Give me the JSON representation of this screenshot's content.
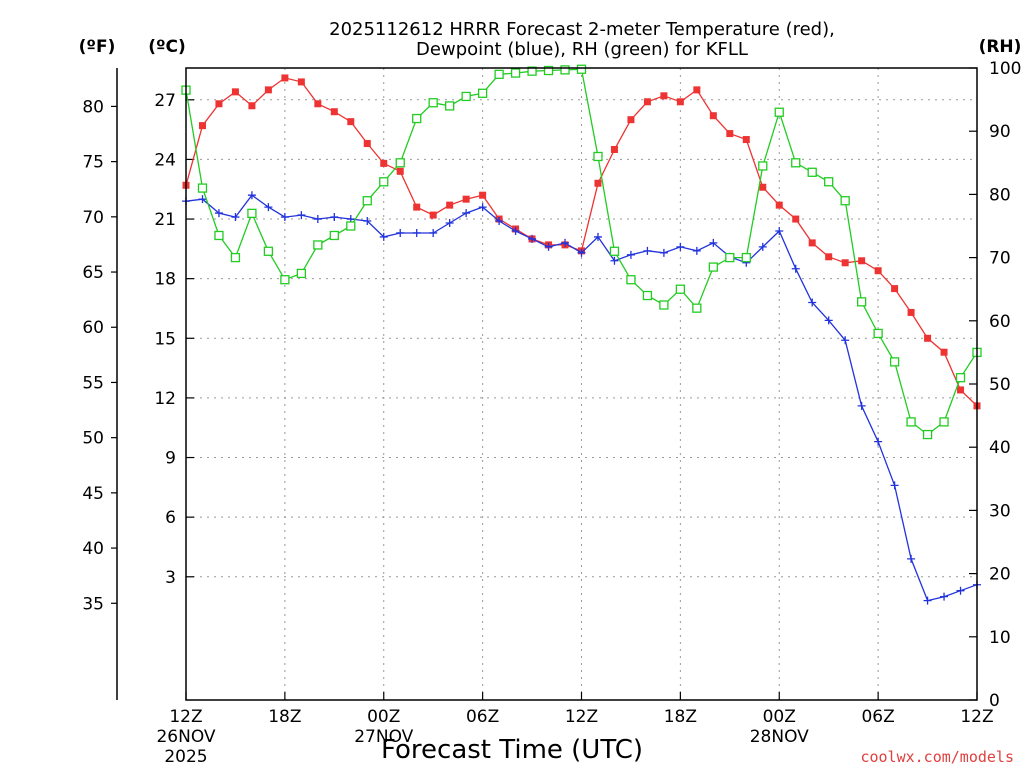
{
  "chart_data": {
    "type": "line",
    "title_line1": "2025112612 HRRR Forecast 2-meter Temperature (red),",
    "title_line2": "Dewpoint (blue), RH (green) for KFLL",
    "xlabel": "Forecast Time (UTC)",
    "left_outer_label": "(ºF)",
    "left_inner_label": "(ºC)",
    "right_label": "(RH)",
    "credit": "coolwx.com/models",
    "x_range_hours": [
      0,
      48
    ],
    "celsius_range": [
      -3.2,
      28.6
    ],
    "rh_range": [
      0,
      100
    ],
    "fahrenheit_ticks": [
      "35",
      "40",
      "45",
      "50",
      "55",
      "60",
      "65",
      "70",
      "75",
      "80"
    ],
    "celsius_ticks": [
      "3",
      "6",
      "9",
      "12",
      "15",
      "18",
      "21",
      "24",
      "27"
    ],
    "rh_ticks": [
      "0",
      "10",
      "20",
      "30",
      "40",
      "50",
      "60",
      "70",
      "80",
      "90",
      "100"
    ],
    "x_ticks": [
      {
        "hour": 0,
        "label": "12Z",
        "sub1": "26NOV",
        "sub2": "2025"
      },
      {
        "hour": 6,
        "label": "18Z",
        "sub1": "",
        "sub2": ""
      },
      {
        "hour": 12,
        "label": "00Z",
        "sub1": "27NOV",
        "sub2": ""
      },
      {
        "hour": 18,
        "label": "06Z",
        "sub1": "",
        "sub2": ""
      },
      {
        "hour": 24,
        "label": "12Z",
        "sub1": "",
        "sub2": ""
      },
      {
        "hour": 30,
        "label": "18Z",
        "sub1": "",
        "sub2": ""
      },
      {
        "hour": 36,
        "label": "00Z",
        "sub1": "28NOV",
        "sub2": ""
      },
      {
        "hour": 42,
        "label": "06Z",
        "sub1": "",
        "sub2": ""
      },
      {
        "hour": 48,
        "label": "12Z",
        "sub1": "",
        "sub2": ""
      }
    ],
    "x": [
      0,
      1,
      2,
      3,
      4,
      5,
      6,
      7,
      8,
      9,
      10,
      11,
      12,
      13,
      14,
      15,
      16,
      17,
      18,
      19,
      20,
      21,
      22,
      23,
      24,
      25,
      26,
      27,
      28,
      29,
      30,
      31,
      32,
      33,
      34,
      35,
      36,
      37,
      38,
      39,
      40,
      41,
      42,
      43,
      44,
      45,
      46,
      47,
      48
    ],
    "series": [
      {
        "color": "#ee3333",
        "marker": "filled-square",
        "axis": "celsius",
        "values": [
          22.7,
          25.7,
          26.8,
          27.4,
          26.7,
          27.5,
          28.1,
          27.9,
          26.8,
          26.4,
          25.9,
          24.8,
          23.8,
          23.4,
          21.6,
          21.2,
          21.7,
          22.0,
          22.2,
          21.0,
          20.5,
          20.0,
          19.7,
          19.7,
          19.4,
          22.8,
          24.5,
          26.0,
          26.9,
          27.2,
          26.9,
          27.5,
          26.2,
          25.3,
          25.0,
          22.6,
          21.7,
          21.0,
          19.8,
          19.1,
          18.8,
          18.9,
          18.4,
          17.5,
          16.3,
          15.0,
          14.3,
          12.4,
          11.6
        ]
      },
      {
        "color": "#2233dd",
        "marker": "plus",
        "axis": "celsius",
        "values": [
          21.9,
          22.0,
          21.3,
          21.1,
          22.2,
          21.6,
          21.1,
          21.2,
          21.0,
          21.1,
          21.0,
          20.9,
          20.1,
          20.3,
          20.3,
          20.3,
          20.8,
          21.3,
          21.6,
          20.9,
          20.4,
          20.0,
          19.6,
          19.8,
          19.3,
          20.1,
          18.9,
          19.2,
          19.4,
          19.3,
          19.6,
          19.4,
          19.8,
          19.1,
          18.8,
          19.6,
          20.4,
          18.5,
          16.8,
          15.9,
          14.9,
          11.6,
          9.8,
          7.6,
          3.9,
          1.8,
          2.0,
          2.3,
          2.6
        ]
      },
      {
        "color": "#22cc22",
        "marker": "open-square",
        "axis": "rh",
        "values": [
          96.5,
          81,
          73.5,
          70,
          77,
          71,
          66.5,
          67.5,
          72,
          73.5,
          75,
          79,
          82,
          85,
          92,
          94.5,
          94,
          95.5,
          96,
          99,
          99.2,
          99.5,
          99.6,
          99.7,
          99.8,
          86,
          71,
          66.5,
          64,
          62.5,
          65,
          62,
          68.5,
          70,
          70,
          84.5,
          93,
          85,
          83.5,
          82,
          79,
          63,
          58,
          53.5,
          44,
          42,
          44,
          51,
          55
        ]
      }
    ]
  }
}
